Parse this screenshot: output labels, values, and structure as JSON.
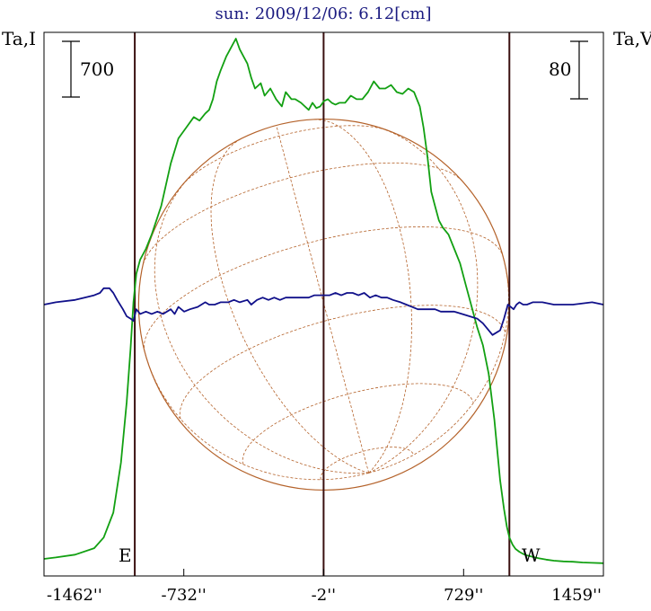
{
  "chart_data": {
    "type": "line",
    "title": "sun: 2009/12/06: 6.12[cm]",
    "left_axis_label": "Ta,I",
    "right_axis_label": "Ta,V",
    "x_unit": "arcsec",
    "x_tick_labels": [
      "-1462''",
      "-732''",
      "-2''",
      "729''",
      "1459''"
    ],
    "x_ticks": [
      -1462,
      -732,
      -2,
      729,
      1459
    ],
    "xlim": [
      -1462,
      1459
    ],
    "limb_marker_labels": [
      "E",
      "W"
    ],
    "vertical_markers": [
      -988,
      -2,
      968
    ],
    "scale_bars": {
      "left": "700",
      "right": "80"
    },
    "colors": {
      "title": "#1a1a80",
      "frame": "#000000",
      "stokes_i": "#12a012",
      "stokes_v": "#10108a",
      "markers": "#3a1010",
      "disk": "#b4622a"
    },
    "solar_disk": {
      "radius_arcsec": 968,
      "meridians": 7,
      "parallels": 7
    },
    "series": [
      {
        "key": "stokes_i",
        "x": [
          -1462,
          -1400,
          -1300,
          -1200,
          -1150,
          -1100,
          -1060,
          -1030,
          -1010,
          -995,
          -980,
          -960,
          -930,
          -900,
          -850,
          -800,
          -760,
          -720,
          -680,
          -650,
          -620,
          -600,
          -580,
          -560,
          -540,
          -510,
          -480,
          -460,
          -440,
          -420,
          -400,
          -380,
          -360,
          -330,
          -310,
          -280,
          -250,
          -220,
          -200,
          -170,
          -150,
          -120,
          -100,
          -80,
          -60,
          -40,
          -20,
          0,
          20,
          40,
          60,
          80,
          110,
          140,
          170,
          200,
          230,
          260,
          290,
          320,
          350,
          380,
          410,
          440,
          470,
          500,
          520,
          540,
          560,
          580,
          600,
          620,
          650,
          680,
          710,
          740,
          770,
          800,
          830,
          860,
          890,
          920,
          940,
          955,
          968,
          985,
          1000,
          1020,
          1040,
          1060,
          1090,
          1120,
          1160,
          1200,
          1250,
          1300,
          1350,
          1400,
          1459
        ],
        "y": [
          10,
          14,
          22,
          40,
          70,
          140,
          280,
          450,
          600,
          730,
          810,
          850,
          880,
          920,
          1000,
          1120,
          1190,
          1220,
          1250,
          1240,
          1260,
          1270,
          1300,
          1350,
          1380,
          1420,
          1450,
          1470,
          1440,
          1420,
          1400,
          1360,
          1330,
          1345,
          1310,
          1330,
          1300,
          1280,
          1320,
          1300,
          1300,
          1290,
          1280,
          1270,
          1290,
          1275,
          1280,
          1295,
          1300,
          1290,
          1285,
          1290,
          1290,
          1310,
          1300,
          1300,
          1320,
          1350,
          1330,
          1330,
          1340,
          1320,
          1315,
          1330,
          1320,
          1280,
          1220,
          1140,
          1040,
          1000,
          960,
          940,
          920,
          880,
          840,
          780,
          720,
          660,
          610,
          530,
          400,
          230,
          150,
          100,
          70,
          50,
          38,
          30,
          24,
          20,
          16,
          12,
          8,
          5,
          3,
          2,
          0,
          -1,
          -2
        ]
      },
      {
        "key": "stokes_v",
        "x": [
          -1462,
          -1400,
          -1300,
          -1250,
          -1200,
          -1170,
          -1150,
          -1120,
          -1100,
          -1080,
          -1050,
          -1030,
          -1010,
          -995,
          -980,
          -960,
          -930,
          -900,
          -870,
          -840,
          -800,
          -780,
          -760,
          -730,
          -700,
          -660,
          -620,
          -600,
          -570,
          -540,
          -500,
          -470,
          -440,
          -400,
          -380,
          -350,
          -320,
          -290,
          -260,
          -230,
          -200,
          -160,
          -120,
          -80,
          -50,
          -20,
          0,
          30,
          60,
          90,
          120,
          150,
          180,
          210,
          240,
          270,
          300,
          330,
          360,
          400,
          430,
          460,
          490,
          520,
          550,
          580,
          610,
          640,
          680,
          720,
          760,
          800,
          830,
          860,
          880,
          900,
          920,
          940,
          960,
          975,
          990,
          1005,
          1020,
          1040,
          1060,
          1090,
          1140,
          1200,
          1300,
          1400,
          1459
        ],
        "y": [
          0,
          1,
          2,
          3,
          4,
          5,
          7,
          7,
          5,
          2,
          -2,
          -5,
          -6,
          -7,
          -2,
          -4,
          -3,
          -4,
          -3,
          -4,
          -2,
          -4,
          -1,
          -3,
          -2,
          -1,
          1,
          0,
          0,
          1,
          1,
          2,
          1,
          2,
          0,
          2,
          3,
          2,
          3,
          2,
          3,
          3,
          3,
          3,
          4,
          4,
          4,
          4,
          5,
          4,
          5,
          5,
          4,
          5,
          3,
          4,
          3,
          3,
          2,
          1,
          0,
          -1,
          -2,
          -2,
          -2,
          -2,
          -3,
          -3,
          -3,
          -4,
          -5,
          -6,
          -8,
          -11,
          -13,
          -12,
          -11,
          -6,
          0,
          -1,
          -2,
          0,
          1,
          0,
          0,
          1,
          1,
          0,
          0,
          1,
          0
        ]
      }
    ]
  }
}
